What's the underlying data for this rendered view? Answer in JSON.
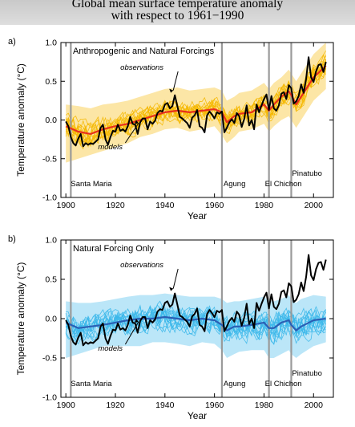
{
  "header": {
    "title_line1": "Global mean surface temperature anomaly",
    "title_line2": "with respect to 1961−1990"
  },
  "chart_data": [
    {
      "type": "line",
      "panel": "a)",
      "title": "Anthropogenic and Natural Forcings",
      "xlabel": "Year",
      "ylabel": "Temperature anomaly (°C)",
      "xlim": [
        1898,
        2008
      ],
      "ylim": [
        -1.0,
        1.0
      ],
      "xticks": [
        1900,
        1920,
        1940,
        1960,
        1980,
        2000
      ],
      "yticks": [
        -1.0,
        -0.5,
        0.0,
        0.5,
        1.0
      ],
      "legend": "none",
      "colors": {
        "models": "#f5b800",
        "mean": "#e8301c",
        "observations": "#000000",
        "events": "#9a9a9a"
      },
      "annotations": {
        "observations": "observations",
        "models": "models"
      },
      "volcanic_events": [
        {
          "label": "Santa Maria",
          "year": 1902
        },
        {
          "label": "Agung",
          "year": 1963
        },
        {
          "label": "El Chichon",
          "year": 1982
        },
        {
          "label": "Pinatubo",
          "year": 1991
        }
      ],
      "series": [
        {
          "role": "observations",
          "x": [
            1900,
            1901,
            1902,
            1903,
            1904,
            1905,
            1906,
            1907,
            1908,
            1909,
            1910,
            1911,
            1912,
            1913,
            1914,
            1915,
            1916,
            1917,
            1918,
            1919,
            1920,
            1921,
            1922,
            1923,
            1924,
            1925,
            1926,
            1927,
            1928,
            1929,
            1930,
            1931,
            1932,
            1933,
            1934,
            1935,
            1936,
            1937,
            1938,
            1939,
            1940,
            1941,
            1942,
            1943,
            1944,
            1945,
            1946,
            1947,
            1948,
            1949,
            1950,
            1951,
            1952,
            1953,
            1954,
            1955,
            1956,
            1957,
            1958,
            1959,
            1960,
            1961,
            1962,
            1963,
            1964,
            1965,
            1966,
            1967,
            1968,
            1969,
            1970,
            1971,
            1972,
            1973,
            1974,
            1975,
            1976,
            1977,
            1978,
            1979,
            1980,
            1981,
            1982,
            1983,
            1984,
            1985,
            1986,
            1987,
            1988,
            1989,
            1990,
            1991,
            1992,
            1993,
            1994,
            1995,
            1996,
            1997,
            1998,
            1999,
            2000,
            2001,
            2002,
            2003,
            2004,
            2005
          ],
          "y": [
            -0.02,
            -0.08,
            -0.22,
            -0.3,
            -0.33,
            -0.24,
            -0.18,
            -0.34,
            -0.3,
            -0.32,
            -0.3,
            -0.31,
            -0.28,
            -0.25,
            -0.1,
            -0.06,
            -0.25,
            -0.32,
            -0.22,
            -0.14,
            -0.15,
            -0.06,
            -0.14,
            -0.12,
            -0.15,
            -0.08,
            0.04,
            -0.05,
            -0.06,
            -0.18,
            -0.03,
            0.02,
            0.02,
            -0.12,
            -0.02,
            -0.05,
            -0.01,
            0.09,
            0.12,
            0.11,
            0.2,
            0.22,
            0.15,
            0.18,
            0.32,
            0.18,
            0.04,
            0.02,
            -0.01,
            -0.04,
            -0.1,
            0.03,
            0.06,
            0.13,
            -0.08,
            -0.1,
            -0.16,
            0.06,
            0.11,
            0.07,
            0.02,
            0.1,
            0.08,
            0.11,
            -0.16,
            -0.1,
            -0.03,
            0.01,
            -0.04,
            0.09,
            0.05,
            -0.09,
            0.01,
            0.19,
            -0.07,
            0.0,
            -0.12,
            0.2,
            0.1,
            0.19,
            0.27,
            0.33,
            0.13,
            0.31,
            0.15,
            0.12,
            0.19,
            0.34,
            0.36,
            0.27,
            0.45,
            0.41,
            0.21,
            0.24,
            0.31,
            0.46,
            0.35,
            0.53,
            0.81,
            0.55,
            0.49,
            0.63,
            0.71,
            0.72,
            0.62,
            0.75
          ]
        },
        {
          "role": "model-mean",
          "x": [
            1900,
            1905,
            1910,
            1915,
            1920,
            1925,
            1930,
            1935,
            1940,
            1945,
            1950,
            1955,
            1960,
            1963,
            1965,
            1968,
            1970,
            1975,
            1980,
            1982,
            1984,
            1987,
            1990,
            1991,
            1993,
            1995,
            2000,
            2005
          ],
          "y": [
            -0.08,
            -0.15,
            -0.18,
            -0.12,
            -0.08,
            -0.05,
            0.0,
            0.05,
            0.1,
            0.12,
            0.1,
            0.12,
            0.14,
            0.1,
            -0.03,
            0.05,
            0.08,
            0.1,
            0.2,
            0.12,
            0.2,
            0.3,
            0.37,
            0.32,
            0.2,
            0.3,
            0.55,
            0.7
          ]
        }
      ],
      "model_envelope": {
        "x": [
          1900,
          1905,
          1910,
          1915,
          1920,
          1925,
          1930,
          1935,
          1940,
          1945,
          1950,
          1955,
          1960,
          1963,
          1965,
          1968,
          1970,
          1975,
          1980,
          1982,
          1984,
          1987,
          1990,
          1991,
          1993,
          1995,
          2000,
          2005
        ],
        "lower": [
          -0.55,
          -0.5,
          -0.45,
          -0.4,
          -0.35,
          -0.3,
          -0.22,
          -0.18,
          -0.12,
          -0.1,
          -0.15,
          -0.12,
          -0.08,
          -0.2,
          -0.3,
          -0.22,
          -0.15,
          -0.12,
          -0.05,
          -0.15,
          -0.08,
          0.0,
          0.05,
          0.0,
          -0.1,
          0.0,
          0.25,
          0.4
        ],
        "upper": [
          0.2,
          0.18,
          0.15,
          0.2,
          0.22,
          0.25,
          0.3,
          0.35,
          0.4,
          0.42,
          0.38,
          0.4,
          0.42,
          0.38,
          0.25,
          0.3,
          0.35,
          0.38,
          0.48,
          0.4,
          0.48,
          0.55,
          0.65,
          0.6,
          0.5,
          0.6,
          0.85,
          1.0
        ]
      }
    },
    {
      "type": "line",
      "panel": "b)",
      "title": "Natural Forcing Only",
      "xlabel": "Year",
      "ylabel": "Temperature anomaly (°C)",
      "xlim": [
        1898,
        2008
      ],
      "ylim": [
        -1.0,
        1.0
      ],
      "xticks": [
        1900,
        1920,
        1940,
        1960,
        1980,
        2000
      ],
      "yticks": [
        -1.0,
        -0.5,
        0.0,
        0.5,
        1.0
      ],
      "legend": "none",
      "colors": {
        "models": "#3cb8ea",
        "mean": "#2a5fb5",
        "observations": "#000000",
        "events": "#9a9a9a"
      },
      "annotations": {
        "observations": "observations",
        "models": "models"
      },
      "volcanic_events": [
        {
          "label": "Santa Maria",
          "year": 1902
        },
        {
          "label": "Agung",
          "year": 1963
        },
        {
          "label": "El Chichon",
          "year": 1982
        },
        {
          "label": "Pinatubo",
          "year": 1991
        }
      ],
      "series": [
        {
          "role": "observations",
          "x": [
            1900,
            1901,
            1902,
            1903,
            1904,
            1905,
            1906,
            1907,
            1908,
            1909,
            1910,
            1911,
            1912,
            1913,
            1914,
            1915,
            1916,
            1917,
            1918,
            1919,
            1920,
            1921,
            1922,
            1923,
            1924,
            1925,
            1926,
            1927,
            1928,
            1929,
            1930,
            1931,
            1932,
            1933,
            1934,
            1935,
            1936,
            1937,
            1938,
            1939,
            1940,
            1941,
            1942,
            1943,
            1944,
            1945,
            1946,
            1947,
            1948,
            1949,
            1950,
            1951,
            1952,
            1953,
            1954,
            1955,
            1956,
            1957,
            1958,
            1959,
            1960,
            1961,
            1962,
            1963,
            1964,
            1965,
            1966,
            1967,
            1968,
            1969,
            1970,
            1971,
            1972,
            1973,
            1974,
            1975,
            1976,
            1977,
            1978,
            1979,
            1980,
            1981,
            1982,
            1983,
            1984,
            1985,
            1986,
            1987,
            1988,
            1989,
            1990,
            1991,
            1992,
            1993,
            1994,
            1995,
            1996,
            1997,
            1998,
            1999,
            2000,
            2001,
            2002,
            2003,
            2004,
            2005
          ],
          "y": [
            -0.02,
            -0.08,
            -0.22,
            -0.3,
            -0.33,
            -0.24,
            -0.18,
            -0.34,
            -0.3,
            -0.32,
            -0.3,
            -0.31,
            -0.28,
            -0.25,
            -0.1,
            -0.06,
            -0.25,
            -0.32,
            -0.22,
            -0.14,
            -0.15,
            -0.06,
            -0.14,
            -0.12,
            -0.15,
            -0.08,
            0.04,
            -0.05,
            -0.06,
            -0.18,
            -0.03,
            0.02,
            0.02,
            -0.12,
            -0.02,
            -0.05,
            -0.01,
            0.09,
            0.12,
            0.11,
            0.2,
            0.22,
            0.15,
            0.18,
            0.32,
            0.18,
            0.04,
            0.02,
            -0.01,
            -0.04,
            -0.1,
            0.03,
            0.06,
            0.13,
            -0.08,
            -0.1,
            -0.16,
            0.06,
            0.11,
            0.07,
            0.02,
            0.1,
            0.08,
            0.11,
            -0.16,
            -0.1,
            -0.03,
            0.01,
            -0.04,
            0.09,
            0.05,
            -0.09,
            0.01,
            0.19,
            -0.07,
            0.0,
            -0.12,
            0.2,
            0.1,
            0.19,
            0.27,
            0.33,
            0.13,
            0.31,
            0.15,
            0.12,
            0.19,
            0.34,
            0.36,
            0.27,
            0.45,
            0.41,
            0.21,
            0.24,
            0.31,
            0.46,
            0.35,
            0.53,
            0.81,
            0.55,
            0.49,
            0.63,
            0.71,
            0.72,
            0.62,
            0.75
          ]
        },
        {
          "role": "model-mean",
          "x": [
            1900,
            1905,
            1910,
            1915,
            1920,
            1925,
            1930,
            1935,
            1940,
            1945,
            1950,
            1955,
            1960,
            1963,
            1965,
            1968,
            1970,
            1975,
            1980,
            1982,
            1984,
            1987,
            1990,
            1991,
            1993,
            1995,
            2000,
            2005
          ],
          "y": [
            -0.05,
            -0.12,
            -0.1,
            -0.08,
            -0.05,
            -0.02,
            0.0,
            0.0,
            0.02,
            0.0,
            -0.02,
            0.0,
            -0.02,
            -0.08,
            -0.15,
            -0.1,
            -0.1,
            -0.08,
            -0.05,
            -0.12,
            -0.12,
            -0.05,
            -0.02,
            -0.08,
            -0.15,
            -0.1,
            -0.02,
            0.0
          ]
        }
      ],
      "model_envelope": {
        "x": [
          1900,
          1905,
          1910,
          1915,
          1920,
          1925,
          1930,
          1935,
          1940,
          1945,
          1950,
          1955,
          1960,
          1963,
          1965,
          1968,
          1970,
          1975,
          1980,
          1982,
          1984,
          1987,
          1990,
          1991,
          1993,
          1995,
          2000,
          2005
        ],
        "lower": [
          -0.5,
          -0.45,
          -0.4,
          -0.35,
          -0.35,
          -0.35,
          -0.35,
          -0.3,
          -0.3,
          -0.32,
          -0.35,
          -0.3,
          -0.32,
          -0.4,
          -0.5,
          -0.45,
          -0.42,
          -0.4,
          -0.4,
          -0.5,
          -0.5,
          -0.45,
          -0.4,
          -0.45,
          -0.5,
          -0.45,
          -0.35,
          -0.3
        ],
        "upper": [
          0.22,
          0.2,
          0.2,
          0.22,
          0.25,
          0.28,
          0.3,
          0.3,
          0.32,
          0.3,
          0.28,
          0.28,
          0.28,
          0.25,
          0.2,
          0.22,
          0.22,
          0.25,
          0.28,
          0.22,
          0.22,
          0.25,
          0.3,
          0.25,
          0.2,
          0.25,
          0.3,
          0.28
        ]
      }
    }
  ]
}
